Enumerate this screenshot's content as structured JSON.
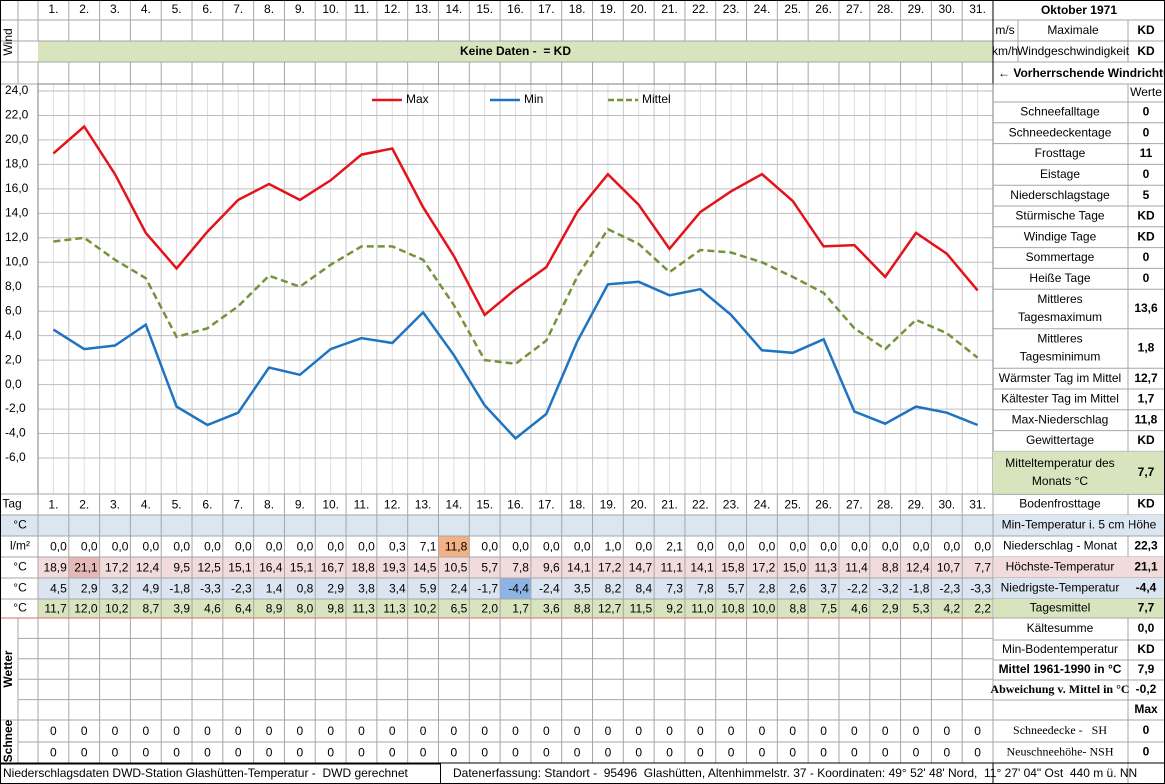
{
  "header": {
    "wind_label": "Wind",
    "month": "Oktober 1971",
    "no_data": "Keine Daten -  = KD",
    "wind_rows": [
      {
        "unit": "m/s",
        "label": "Maximale",
        "value": "KD"
      },
      {
        "unit": "km/h",
        "label": "Windgeschwindigkeit",
        "value": "KD"
      }
    ],
    "wind_direction": "← Vorherrschende Windrichtung"
  },
  "chart_data": {
    "type": "line",
    "categories": [
      "1.",
      "2.",
      "3.",
      "4.",
      "5.",
      "6.",
      "7.",
      "8.",
      "9.",
      "10.",
      "11.",
      "12.",
      "13.",
      "14.",
      "15.",
      "16.",
      "17.",
      "18.",
      "19.",
      "20.",
      "21.",
      "22.",
      "23.",
      "24.",
      "25.",
      "26.",
      "27.",
      "28.",
      "29.",
      "30.",
      "31."
    ],
    "ylim": [
      -6,
      24
    ],
    "yticks": [
      {
        "value": 24,
        "label": "24,0"
      },
      {
        "value": 22,
        "label": "22,0"
      },
      {
        "value": 20,
        "label": "20,0"
      },
      {
        "value": 18,
        "label": "18,0"
      },
      {
        "value": 16,
        "label": "16,0"
      },
      {
        "value": 14,
        "label": "14,0"
      },
      {
        "value": 12,
        "label": "12,0"
      },
      {
        "value": 10,
        "label": "10,0"
      },
      {
        "value": 8,
        "label": "8,0"
      },
      {
        "value": 6,
        "label": "6,0"
      },
      {
        "value": 4,
        "label": "4,0"
      },
      {
        "value": 2,
        "label": "2,0"
      },
      {
        "value": 0,
        "label": "0,0"
      },
      {
        "value": -2,
        "label": "-2,0"
      },
      {
        "value": -4,
        "label": "-4,0"
      },
      {
        "value": -6,
        "label": "-6,0"
      }
    ],
    "grid": true,
    "legend": "top",
    "series": [
      {
        "name": "Max",
        "color": "#e3121b",
        "dashed": false,
        "values": [
          18.9,
          21.1,
          17.2,
          12.4,
          9.5,
          12.5,
          15.1,
          16.4,
          15.1,
          16.7,
          18.8,
          19.3,
          14.5,
          10.5,
          5.7,
          7.8,
          9.6,
          14.1,
          17.2,
          14.7,
          11.1,
          14.1,
          15.8,
          17.2,
          15.0,
          11.3,
          11.4,
          8.8,
          12.4,
          10.7,
          7.7
        ],
        "value_labels": [
          "18,9",
          "21,1",
          "17,2",
          "12,4",
          "9,5",
          "12,5",
          "15,1",
          "16,4",
          "15,1",
          "16,7",
          "18,8",
          "19,3",
          "14,5",
          "10,5",
          "5,7",
          "7,8",
          "9,6",
          "14,1",
          "17,2",
          "14,7",
          "11,1",
          "14,1",
          "15,8",
          "17,2",
          "15,0",
          "11,3",
          "11,4",
          "8,8",
          "12,4",
          "10,7",
          "7,7"
        ]
      },
      {
        "name": "Min",
        "color": "#1f74c2",
        "dashed": false,
        "values": [
          4.5,
          2.9,
          3.2,
          4.9,
          -1.8,
          -3.3,
          -2.3,
          1.4,
          0.8,
          2.9,
          3.8,
          3.4,
          5.9,
          2.4,
          -1.7,
          -4.4,
          -2.4,
          3.5,
          8.2,
          8.4,
          7.3,
          7.8,
          5.7,
          2.8,
          2.6,
          3.7,
          -2.2,
          -3.2,
          -1.8,
          -2.3,
          -3.3
        ],
        "value_labels": [
          "4,5",
          "2,9",
          "3,2",
          "4,9",
          "-1,8",
          "-3,3",
          "-2,3",
          "1,4",
          "0,8",
          "2,9",
          "3,8",
          "3,4",
          "5,9",
          "2,4",
          "-1,7",
          "-4,4",
          "-2,4",
          "3,5",
          "8,2",
          "8,4",
          "7,3",
          "7,8",
          "5,7",
          "2,8",
          "2,6",
          "3,7",
          "-2,2",
          "-3,2",
          "-1,8",
          "-2,3",
          "-3,3"
        ]
      },
      {
        "name": "Mittel",
        "color": "#76923c",
        "dashed": true,
        "values": [
          11.7,
          12.0,
          10.2,
          8.7,
          3.9,
          4.6,
          6.4,
          8.9,
          8.0,
          9.8,
          11.3,
          11.3,
          10.2,
          6.5,
          2.0,
          1.7,
          3.6,
          8.8,
          12.7,
          11.5,
          9.2,
          11.0,
          10.8,
          10.0,
          8.8,
          7.5,
          4.6,
          2.9,
          5.3,
          4.2,
          2.2
        ],
        "value_labels": [
          "11,7",
          "12,0",
          "10,2",
          "8,7",
          "3,9",
          "4,6",
          "6,4",
          "8,9",
          "8,0",
          "9,8",
          "11,3",
          "11,3",
          "10,2",
          "6,5",
          "2,0",
          "1,7",
          "3,6",
          "8,8",
          "12,7",
          "11,5",
          "9,2",
          "11,0",
          "10,8",
          "10,0",
          "8,8",
          "7,5",
          "4,6",
          "2,9",
          "5,3",
          "4,2",
          "2,2"
        ]
      }
    ]
  },
  "table": {
    "day_label": "Tag",
    "unit_min5": "°C",
    "unit_precip": "l/m²",
    "unit_max": "°C",
    "unit_min": "°C",
    "unit_mean": "°C",
    "precipitation": [
      "0,0",
      "0,0",
      "0,0",
      "0,0",
      "0,0",
      "0,0",
      "0,0",
      "0,0",
      "0,0",
      "0,0",
      "0,0",
      "0,3",
      "7,1",
      "11,8",
      "0,0",
      "0,0",
      "0,0",
      "0,0",
      "1,0",
      "0,0",
      "2,1",
      "0,0",
      "0,0",
      "0,0",
      "0,0",
      "0,0",
      "0,0",
      "0,0",
      "0,0",
      "0,0",
      "0,0"
    ],
    "weather_label": "Wetter",
    "snow_label": "Schnee",
    "snow_depth": [
      "0",
      "0",
      "0",
      "0",
      "0",
      "0",
      "0",
      "0",
      "0",
      "0",
      "0",
      "0",
      "0",
      "0",
      "0",
      "0",
      "0",
      "0",
      "0",
      "0",
      "0",
      "0",
      "0",
      "0",
      "0",
      "0",
      "0",
      "0",
      "0",
      "0",
      "0"
    ],
    "new_snow": [
      "0",
      "0",
      "0",
      "0",
      "0",
      "0",
      "0",
      "0",
      "0",
      "0",
      "0",
      "0",
      "0",
      "0",
      "0",
      "0",
      "0",
      "0",
      "0",
      "0",
      "0",
      "0",
      "0",
      "0",
      "0",
      "0",
      "0",
      "0",
      "0",
      "0",
      "0"
    ]
  },
  "side": {
    "values_header": "Werte",
    "stats": [
      {
        "label": "Schneefalltage",
        "value": "0"
      },
      {
        "label": "Schneedeckentage",
        "value": "0"
      },
      {
        "label": "Frosttage",
        "value": "11"
      },
      {
        "label": "Eistage",
        "value": "0"
      },
      {
        "label": "Niederschlagstage",
        "value": "5"
      },
      {
        "label": "Stürmische Tage",
        "value": "KD"
      },
      {
        "label": "Windige Tage",
        "value": "KD"
      },
      {
        "label": "Sommertage",
        "value": "0"
      },
      {
        "label": "Heiße Tage",
        "value": "0"
      },
      {
        "label": [
          "Mittleres",
          "Tagesmaximum"
        ],
        "value": "13,6"
      },
      {
        "label": [
          "Mittleres",
          "Tagesminimum"
        ],
        "value": "1,8"
      },
      {
        "label": "Wärmster Tag im Mittel",
        "value": "12,7"
      },
      {
        "label": "Kältester Tag im Mittel",
        "value": "1,7"
      },
      {
        "label": "Max-Niederschlag",
        "value": "11,8"
      },
      {
        "label": "Gewittertage",
        "value": "KD"
      },
      {
        "label": [
          "Mitteltemperatur des",
          "Monats °C"
        ],
        "value": "7,7"
      }
    ],
    "bottom": [
      {
        "label": "Bodenfrosttage",
        "value": "KD"
      },
      {
        "label": "Min-Temperatur i. 5 cm Höhe"
      },
      {
        "label": "Niederschlag - Monat",
        "value": "22,3"
      },
      {
        "label": "Höchste-Temperatur",
        "value": "21,1"
      },
      {
        "label": "Niedrigste-Temperatur",
        "value": "-4,4"
      },
      {
        "label": "Tagesmittel",
        "value": "7,7"
      },
      {
        "label": "Kältesumme",
        "value": "0,0"
      },
      {
        "label": "Min-Bodentemperatur",
        "value": "KD"
      },
      {
        "label": "Mittel 1961-1990 in °C",
        "value": "7,9"
      },
      {
        "label": "Abweichung v. Mittel in °C",
        "value": "-0,2"
      },
      {
        "value": "Max"
      },
      {
        "label": "Schneedecke -   SH",
        "value": "0"
      },
      {
        "label": "Neuschneehöhe- NSH",
        "value": "0"
      }
    ]
  },
  "footer": {
    "source": "Niederschlagsdaten DWD-Station Glashütten-Temperatur -  DWD gerechnet",
    "location": "Datenerfassung: Standort -  95496  Glashütten, Altenhimmelstr. 37 - Koordinaten: 49° 52' 48' Nord,  11° 27' 04\" Ost  440 m ü. NN"
  }
}
